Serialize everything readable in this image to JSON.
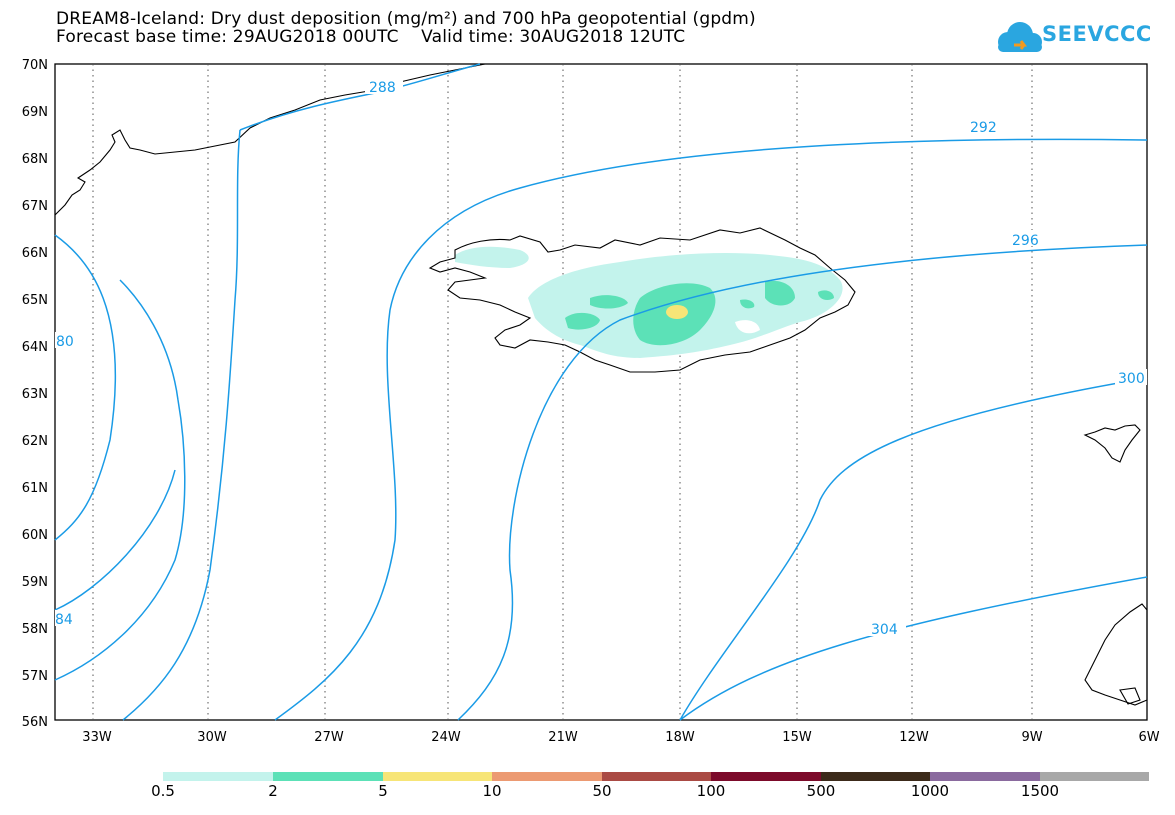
{
  "title": {
    "line1": "DREAM8-Iceland: Dry dust deposition (mg/m²) and 700 hPa geopotential (gpdm)",
    "line2": "Forecast base time: 29AUG2018 00UTC    Valid time: 30AUG2018 12UTC"
  },
  "logo": {
    "text": "SEEVCCC",
    "icon": "cloud-icon",
    "color": "#2aa6e0"
  },
  "axes": {
    "lat_labels": [
      "70N",
      "69N",
      "68N",
      "67N",
      "66N",
      "65N",
      "64N",
      "63N",
      "62N",
      "61N",
      "60N",
      "59N",
      "58N",
      "57N",
      "56N"
    ],
    "lon_labels": [
      "33W",
      "30W",
      "27W",
      "24W",
      "21W",
      "18W",
      "15W",
      "12W",
      "9W",
      "6W"
    ]
  },
  "contours": {
    "color": "#1a9be6",
    "labels": [
      "288",
      "292",
      "296",
      "300",
      "304",
      "80",
      "84"
    ]
  },
  "colorbar": {
    "colors": [
      "#c3f3ec",
      "#5ce1b7",
      "#f7e577",
      "#ec9a72",
      "#aa4a44",
      "#7c0a2a",
      "#3c2a1a",
      "#8a6a9e",
      "#a8a8a8"
    ],
    "labels": [
      "0.5",
      "2",
      "5",
      "10",
      "50",
      "100",
      "500",
      "1000",
      "1500"
    ]
  }
}
